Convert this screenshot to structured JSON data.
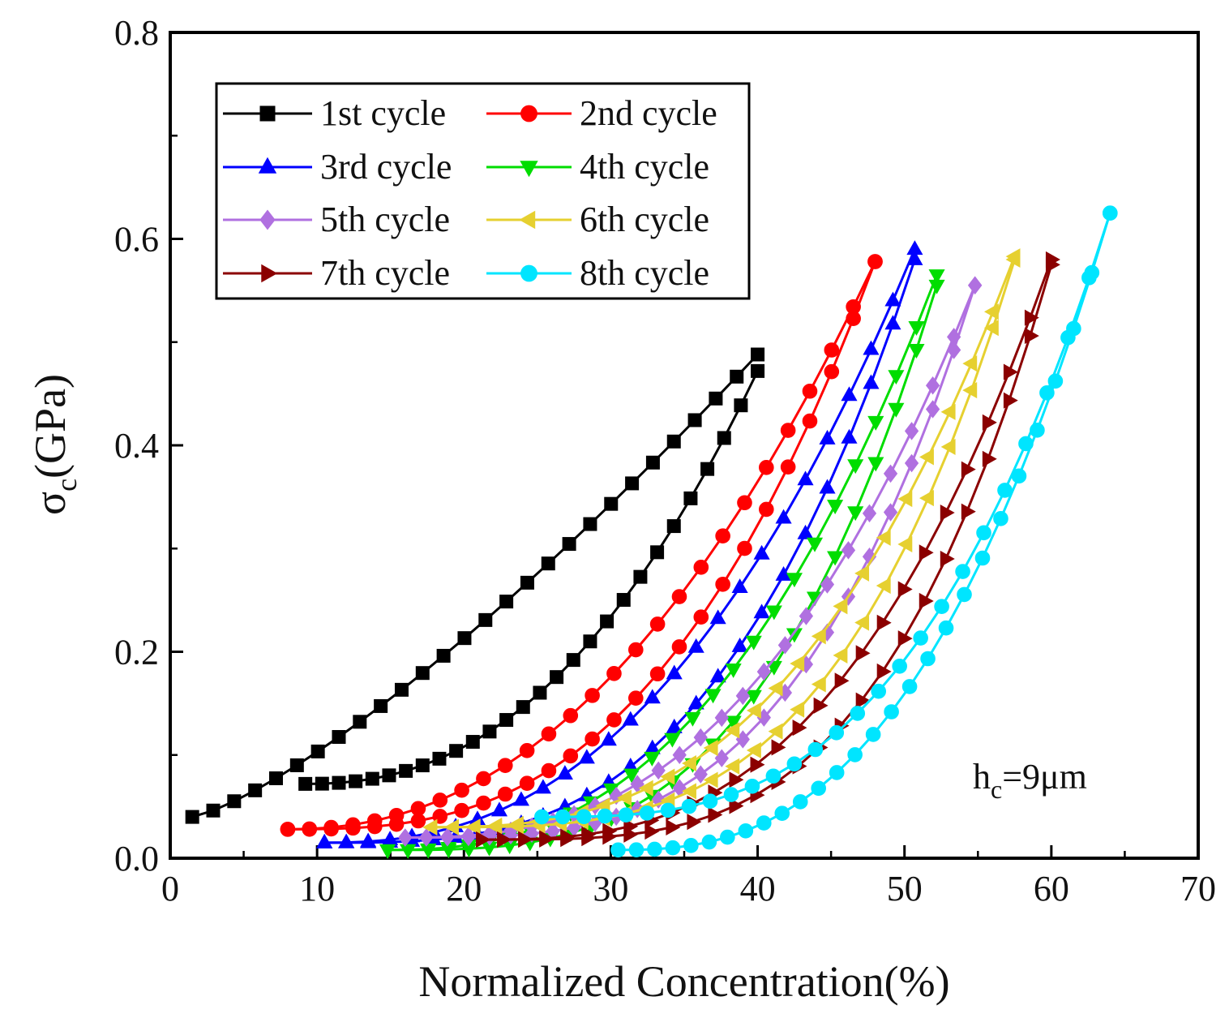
{
  "chart_data": {
    "type": "line",
    "title": "",
    "xlabel": "Normalized Concentration(%)",
    "ylabel_main": "σ",
    "ylabel_sub": "c",
    "ylabel_unit": "(GPa)",
    "xlim": [
      0,
      70
    ],
    "ylim": [
      0,
      0.8
    ],
    "x_ticks": [
      0,
      10,
      20,
      30,
      40,
      50,
      60,
      70
    ],
    "y_ticks": [
      0.0,
      0.2,
      0.4,
      0.6,
      0.8
    ],
    "x_tick_labels": [
      "0",
      "10",
      "20",
      "30",
      "40",
      "50",
      "60",
      "70"
    ],
    "y_tick_labels": [
      "0.0",
      "0.2",
      "0.4",
      "0.6",
      "0.8"
    ],
    "grid": false,
    "legend_position": "top-left",
    "annotation": {
      "main": "h",
      "sub": "c",
      "rest": "=9μm"
    },
    "series": [
      {
        "name": "1st cycle",
        "color": "#000000",
        "marker": "square",
        "upper": {
          "x0": 1.5,
          "x1": 40,
          "y0": 0.04,
          "y1": 0.488,
          "p": 1.3
        },
        "lower": {
          "x0": 9.2,
          "x1": 40,
          "y0": 0.072,
          "y1": 0.472,
          "p": 2.3
        }
      },
      {
        "name": "2nd cycle",
        "color": "#ff0000",
        "marker": "circle",
        "upper": {
          "x0": 8.0,
          "x1": 48,
          "y0": 0.028,
          "y1": 0.578,
          "p": 2.2
        },
        "lower": {
          "x0": 8.0,
          "x1": 48,
          "y0": 0.028,
          "y1": 0.578,
          "p": 2.8
        }
      },
      {
        "name": "3rd cycle",
        "color": "#0000ff",
        "marker": "triangle-up",
        "upper": {
          "x0": 10.5,
          "x1": 50.7,
          "y0": 0.015,
          "y1": 0.59,
          "p": 2.4
        },
        "lower": {
          "x0": 10.5,
          "x1": 50.7,
          "y0": 0.015,
          "y1": 0.58,
          "p": 3.1
        }
      },
      {
        "name": "4th cycle",
        "color": "#00dd00",
        "marker": "triangle-down",
        "upper": {
          "x0": 14.8,
          "x1": 52.2,
          "y0": 0.008,
          "y1": 0.565,
          "p": 2.5
        },
        "lower": {
          "x0": 14.8,
          "x1": 52.2,
          "y0": 0.008,
          "y1": 0.555,
          "p": 3.2
        }
      },
      {
        "name": "5th cycle",
        "color": "#b070e0",
        "marker": "diamond",
        "upper": {
          "x0": 16.0,
          "x1": 54.8,
          "y0": 0.02,
          "y1": 0.555,
          "p": 2.6
        },
        "lower": {
          "x0": 16.0,
          "x1": 54.8,
          "y0": 0.02,
          "y1": 0.555,
          "p": 3.3
        }
      },
      {
        "name": "6th cycle",
        "color": "#e6d030",
        "marker": "triangle-left",
        "upper": {
          "x0": 17.8,
          "x1": 57.5,
          "y0": 0.03,
          "y1": 0.583,
          "p": 2.7
        },
        "lower": {
          "x0": 17.8,
          "x1": 57.5,
          "y0": 0.03,
          "y1": 0.58,
          "p": 3.4
        }
      },
      {
        "name": "7th cycle",
        "color": "#8b0000",
        "marker": "triangle-right",
        "upper": {
          "x0": 21.2,
          "x1": 60.0,
          "y0": 0.018,
          "y1": 0.58,
          "p": 2.8
        },
        "lower": {
          "x0": 21.2,
          "x1": 60.0,
          "y0": 0.018,
          "y1": 0.575,
          "p": 3.5
        }
      },
      {
        "name": "8th cycle",
        "color": "#00e5ff",
        "marker": "circle",
        "upper": {
          "x0": 25.3,
          "x1": 64.0,
          "y0": 0.04,
          "y1": 0.625,
          "p": 3.0
        },
        "lower": {
          "x0": 30.5,
          "x1": 64.0,
          "y0": 0.008,
          "y1": 0.625,
          "p": 2.6
        }
      }
    ]
  }
}
